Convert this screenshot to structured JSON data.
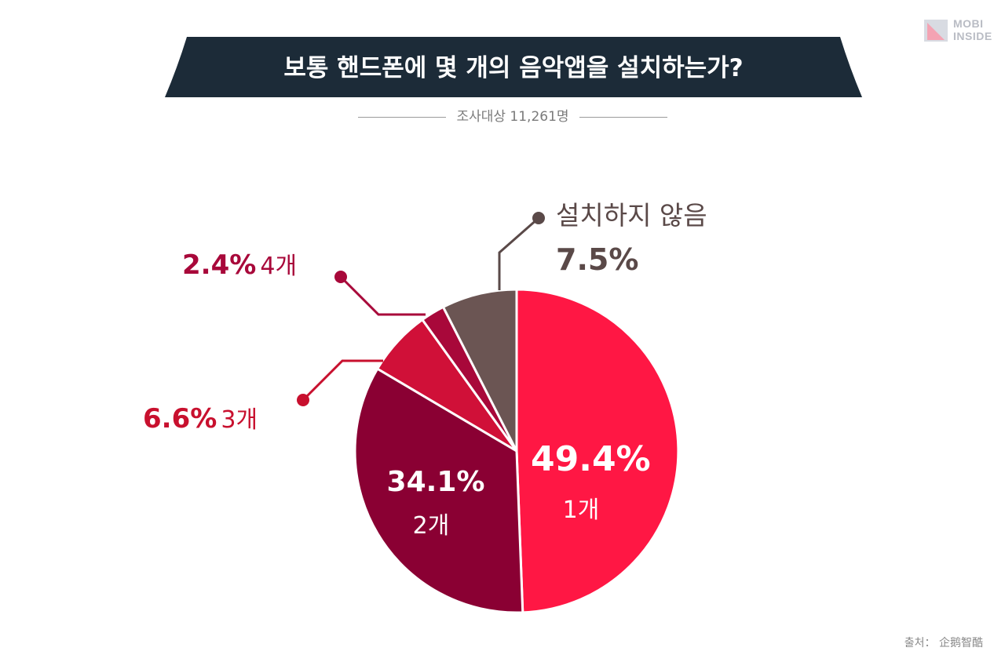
{
  "title": "보통 핸드폰에 몇 개의 음악앱을 설치하는가?",
  "subtitle": "조사대상 11,261명",
  "logo": {
    "line1": "MOBI",
    "line2": "INSIDE"
  },
  "source": "출처： 企鹅智酷",
  "colors": {
    "banner": "#1c2b38",
    "one": "#ff1744",
    "two": "#8a0033",
    "three": "#d01038",
    "four": "#a8083a",
    "none": "#6b5553"
  },
  "chart_data": {
    "type": "pie",
    "title": "보통 핸드폰에 몇 개의 음악앱을 설치하는가?",
    "subtitle": "조사대상 11,261명",
    "slices": [
      {
        "label": "1개",
        "value": 49.4,
        "value_label": "49.4%",
        "color": "#ff1744"
      },
      {
        "label": "2개",
        "value": 34.1,
        "value_label": "34.1%",
        "color": "#8a0033"
      },
      {
        "label": "3개",
        "value": 6.6,
        "value_label": "6.6%",
        "color": "#d01038"
      },
      {
        "label": "4개",
        "value": 2.4,
        "value_label": "2.4%",
        "color": "#a8083a"
      },
      {
        "label": "설치하지 않음",
        "value": 7.5,
        "value_label": "7.5%",
        "color": "#6b5553"
      }
    ]
  }
}
